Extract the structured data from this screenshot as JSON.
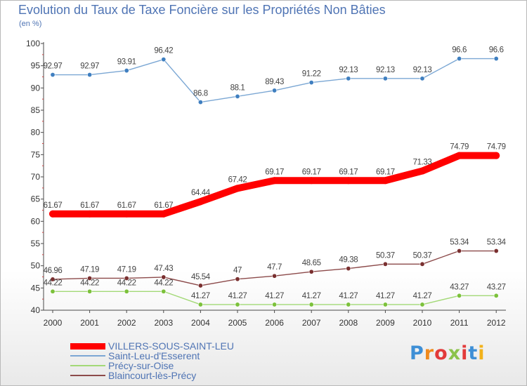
{
  "title": "Evolution du Taux de Taxe Foncière sur les Propriétés Non Bâties",
  "subtitle": "(en %)",
  "logo": {
    "text": "Proxiti",
    "letters": [
      "P",
      "r",
      "o",
      "x",
      "i",
      "t",
      "i"
    ],
    "colors": [
      "#3e8fd6",
      "#f08a1d",
      "#e23a3a",
      "#8bc34a",
      "#e23a3a",
      "#3e8fd6",
      "#f2b21b"
    ]
  },
  "chart_data": {
    "type": "line",
    "title": "Evolution du Taux de Taxe Foncière sur les Propriétés Non Bâties",
    "ylabel": "(en %)",
    "xlabel": "",
    "x": [
      "2000",
      "2001",
      "2002",
      "2003",
      "2004",
      "2005",
      "2006",
      "2007",
      "2008",
      "2009",
      "2010",
      "2011",
      "2012"
    ],
    "ylim": [
      40,
      100
    ],
    "yticks": [
      "40",
      "45",
      "50",
      "55",
      "60",
      "65",
      "70",
      "75",
      "80",
      "85",
      "90",
      "95",
      "100"
    ],
    "grid": false,
    "legend_position": "bottom-left",
    "series": [
      {
        "name": "VILLERS-SOUS-SAINT-LEU",
        "color": "#ff0000",
        "emphasis": true,
        "values": [
          61.67,
          61.67,
          61.67,
          61.67,
          64.44,
          67.42,
          69.17,
          69.17,
          69.17,
          69.17,
          71.33,
          74.79,
          74.79
        ],
        "labels": [
          "61.67",
          "61.67",
          "61.67",
          "61.67",
          "64.44",
          "67.42",
          "69.17",
          "69.17",
          "69.17",
          "69.17",
          "71.33",
          "74.79",
          "74.79"
        ]
      },
      {
        "name": "Saint-Leu-d'Esserent",
        "color": "#7ba7d4",
        "marker": "#3f7fc0",
        "emphasis": false,
        "values": [
          92.97,
          92.97,
          93.91,
          96.42,
          86.8,
          88.1,
          89.43,
          91.22,
          92.13,
          92.13,
          92.13,
          96.6,
          96.6
        ],
        "labels": [
          "92.97",
          "92.97",
          "93.91",
          "96.42",
          "86.8",
          "88.1",
          "89.43",
          "91.22",
          "92.13",
          "92.13",
          "92.13",
          "96.6",
          "96.6"
        ]
      },
      {
        "name": "Précy-sur-Oise",
        "color": "#a3d977",
        "marker": "#7cc13b",
        "emphasis": false,
        "values": [
          44.22,
          44.22,
          44.22,
          44.22,
          41.27,
          41.27,
          41.27,
          41.27,
          41.27,
          41.27,
          41.27,
          43.27,
          43.27
        ],
        "labels": [
          "44.22",
          "44.22",
          "44.22",
          "44.22",
          "41.27",
          "41.27",
          "41.27",
          "41.27",
          "41.27",
          "41.27",
          "41.27",
          "43.27",
          "43.27"
        ]
      },
      {
        "name": "Blaincourt-lès-Précy",
        "color": "#8c4a4a",
        "marker": "#7a3030",
        "emphasis": false,
        "values": [
          46.96,
          47.19,
          47.19,
          47.43,
          45.54,
          47,
          47.7,
          48.65,
          49.38,
          50.37,
          50.37,
          53.34,
          53.34
        ],
        "labels": [
          "46.96",
          "47.19",
          "47.19",
          "47.43",
          "45.54",
          "47",
          "47.7",
          "48.65",
          "49.38",
          "50.37",
          "50.37",
          "53.34",
          "53.34"
        ]
      }
    ]
  }
}
